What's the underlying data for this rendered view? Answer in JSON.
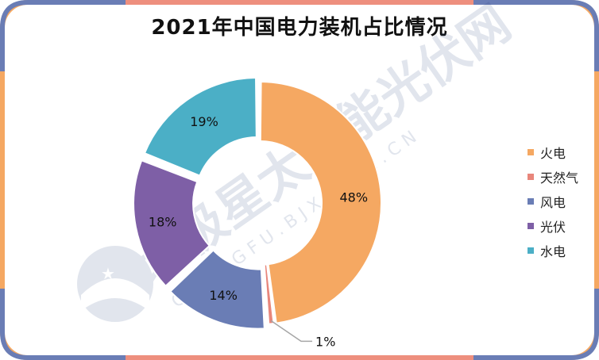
{
  "chart_data": {
    "type": "pie",
    "donut": true,
    "title": "2021年中国电力装机占比情况",
    "categories": [
      "火电",
      "天然气",
      "风电",
      "光伏",
      "水电"
    ],
    "values": [
      48,
      1,
      14,
      18,
      19
    ],
    "value_labels": [
      "48%",
      "1%",
      "14%",
      "18%",
      "19%"
    ],
    "colors": [
      "#F5A862",
      "#E8867B",
      "#6A7DB5",
      "#7E5FA6",
      "#4BAFC6"
    ],
    "legend_position": "right"
  },
  "watermark": {
    "text": "北极星太阳能光伏网",
    "subtext": "G U A N G F U . B J X . C O M . C N"
  },
  "frame_colors": {
    "top": "#EE8F7E",
    "side": "#F5A862",
    "corner": "#6A7DB5",
    "bottom": "#EE8F7E"
  }
}
